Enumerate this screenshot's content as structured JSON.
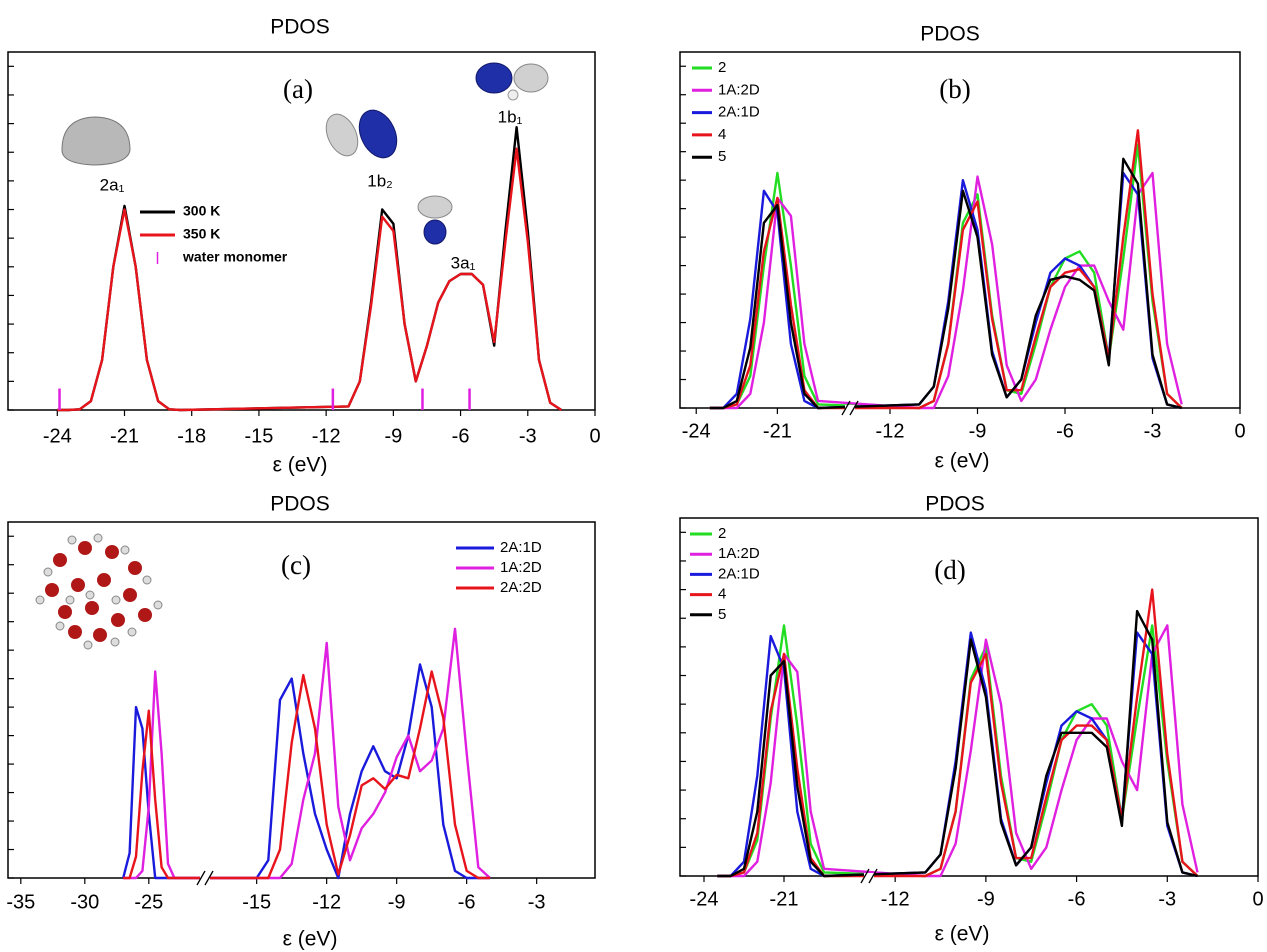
{
  "chart_data": [
    {
      "type": "line",
      "title": "PDOS",
      "panel_label": "(a)",
      "xlabel": "ε (eV)",
      "xlim": [
        -26.2,
        0
      ],
      "xticks": [
        -24,
        -21,
        -18,
        -15,
        -12,
        -9,
        -6,
        -3,
        0
      ],
      "ylim": [
        0,
        100
      ],
      "yticks": [
        0,
        8,
        16,
        24,
        32,
        40,
        48,
        56,
        64,
        72,
        80,
        88,
        96
      ],
      "ytick_labels": false,
      "x": [
        -24,
        -23.5,
        -23,
        -22.5,
        -22,
        -21.5,
        -21,
        -20.5,
        -20,
        -19.5,
        -19,
        -18.5,
        -11,
        -10.5,
        -10,
        -9.5,
        -9,
        -8.5,
        -8,
        -7.5,
        -7,
        -6.5,
        -6,
        -5.5,
        -5,
        -4.5,
        -4,
        -3.5,
        -3,
        -2.5,
        -2,
        -1.5
      ],
      "series": [
        {
          "name": "300 K",
          "color": "#000000",
          "values": [
            0,
            0,
            0.2,
            2.5,
            14,
            40,
            57,
            40,
            14,
            2.5,
            0.2,
            0,
            1,
            8,
            30,
            56,
            52,
            24,
            8,
            18,
            30,
            36,
            38,
            38,
            35,
            18,
            50,
            79,
            50,
            14,
            2,
            0
          ]
        },
        {
          "name": "350 K",
          "color": "#e8141c",
          "values": [
            0,
            0,
            0.2,
            2.5,
            14,
            40,
            56,
            40,
            14,
            2.5,
            0.2,
            0,
            1,
            8,
            29,
            54,
            50,
            24,
            8,
            18,
            30,
            36,
            38,
            38,
            35,
            19,
            47,
            73,
            47,
            14,
            2,
            0
          ]
        },
        {
          "name": "water monomer",
          "color": "#e020e0",
          "style": "stick",
          "x": [
            -23.9,
            -11.7,
            -7.7,
            -5.6
          ],
          "values": [
            6,
            6,
            6,
            6
          ]
        }
      ],
      "annotations": [
        "2a₁",
        "1b₂",
        "3a₁",
        "1b₁"
      ],
      "legend": "upper left"
    },
    {
      "type": "line",
      "title": "PDOS",
      "panel_label": "(b)",
      "xlabel": "ε (eV)",
      "xlim": [
        -24.6,
        0
      ],
      "x_break": [
        -18.5,
        -13.2
      ],
      "xticks": [
        -24,
        -21,
        -12,
        -9,
        -6,
        -3,
        0
      ],
      "ylim": [
        0,
        100
      ],
      "yticks": [
        0,
        8,
        16,
        24,
        32,
        40,
        48,
        56,
        64,
        72,
        80,
        88,
        96
      ],
      "ytick_labels": false,
      "x": [
        -23.5,
        -23,
        -22.5,
        -22,
        -21.5,
        -21,
        -20.5,
        -20,
        -19.5,
        -11,
        -10.5,
        -10,
        -9.5,
        -9,
        -8.5,
        -8,
        -7.5,
        -7,
        -6.5,
        -6,
        -5.5,
        -5,
        -4.5,
        -4,
        -3.5,
        -3,
        -2.5,
        -2
      ],
      "series": [
        {
          "name": "2",
          "color": "#22dd22",
          "values": [
            0,
            0,
            1,
            9,
            40,
            66,
            40,
            9,
            1,
            0,
            2,
            18,
            52,
            60,
            26,
            5,
            4,
            18,
            34,
            42,
            44,
            38,
            14,
            42,
            74,
            30,
            4,
            0
          ]
        },
        {
          "name": "1A:2D",
          "color": "#e020e0",
          "values": [
            0,
            0,
            0,
            4,
            24,
            59,
            54,
            18,
            2,
            0,
            0,
            9,
            33,
            65,
            46,
            12,
            2,
            8,
            22,
            34,
            40,
            40,
            30,
            22,
            60,
            66,
            18,
            1
          ]
        },
        {
          "name": "2A:1D",
          "color": "#1a1adc",
          "values": [
            0,
            0,
            4,
            25,
            61,
            55,
            18,
            2,
            0,
            1,
            6,
            30,
            64,
            50,
            16,
            3,
            8,
            24,
            38,
            42,
            40,
            34,
            14,
            66,
            60,
            14,
            1,
            0
          ]
        },
        {
          "name": "4",
          "color": "#e8141c",
          "values": [
            0,
            0,
            1,
            12,
            44,
            59,
            29,
            5,
            0,
            0,
            2,
            18,
            50,
            58,
            25,
            5,
            5,
            20,
            34,
            38,
            39,
            34,
            14,
            48,
            78,
            32,
            4,
            0
          ]
        },
        {
          "name": "5",
          "color": "#000000",
          "values": [
            0,
            0,
            2,
            17,
            52,
            57,
            24,
            4,
            0,
            1,
            6,
            28,
            61,
            48,
            15,
            3,
            8,
            26,
            36,
            37,
            36,
            33,
            12,
            70,
            63,
            15,
            1,
            0
          ]
        }
      ],
      "legend": "upper left"
    },
    {
      "type": "line",
      "title": "PDOS",
      "panel_label": "(c)",
      "xlabel": "ε (eV)",
      "xlim": [
        -36,
        -0.5
      ],
      "x_break": [
        -21,
        -17
      ],
      "xticks": [
        -35,
        -30,
        -25,
        -15,
        -12,
        -9,
        -6,
        -3
      ],
      "ylim": [
        0,
        100
      ],
      "yticks": [
        0,
        8,
        16,
        24,
        32,
        40,
        48,
        56,
        64,
        72,
        80,
        88,
        96
      ],
      "ytick_labels": false,
      "x": [
        -27,
        -26.5,
        -26,
        -25.5,
        -25,
        -24.5,
        -24,
        -23.5,
        -23,
        -15,
        -14.5,
        -14,
        -13.5,
        -13,
        -12.5,
        -12,
        -11.5,
        -11,
        -10.5,
        -10,
        -9.5,
        -9,
        -8.5,
        -8,
        -7.5,
        -7,
        -6.5,
        -6,
        -5.5,
        -5
      ],
      "series": [
        {
          "name": "2A:1D",
          "color": "#1a1adc",
          "values": [
            0,
            7,
            48,
            42,
            18,
            0,
            0,
            0,
            0,
            0,
            5,
            50,
            56,
            35,
            18,
            8,
            0,
            18,
            30,
            37,
            30,
            28,
            40,
            60,
            48,
            15,
            2,
            0,
            0,
            0
          ]
        },
        {
          "name": "1A:2D",
          "color": "#e020e0",
          "values": [
            0,
            0,
            0,
            2,
            20,
            58,
            35,
            4,
            0,
            0,
            0,
            0,
            4,
            22,
            35,
            66,
            20,
            5,
            14,
            18,
            24,
            34,
            40,
            30,
            33,
            42,
            70,
            35,
            3,
            0
          ]
        },
        {
          "name": "2A:2D",
          "color": "#e8141c",
          "values": [
            0,
            0,
            6,
            30,
            47,
            22,
            3,
            0,
            0,
            0,
            0,
            8,
            38,
            57,
            42,
            15,
            1,
            12,
            26,
            28,
            25,
            29,
            28,
            42,
            58,
            45,
            15,
            2,
            0,
            0
          ]
        }
      ],
      "legend": "upper right"
    },
    {
      "type": "line",
      "title": "PDOS",
      "panel_label": "(d)",
      "xlabel": "ε (eV)",
      "xlim": [
        -24.9,
        0
      ],
      "x_break": [
        -18,
        -12.7
      ],
      "xticks": [
        -24,
        -21,
        -12,
        -9,
        -6,
        -3,
        0
      ],
      "ylim": [
        0,
        100
      ],
      "yticks": [
        0,
        8,
        16,
        24,
        32,
        40,
        48,
        56,
        64,
        72,
        80,
        88,
        96
      ],
      "ytick_labels": false,
      "x": [
        -23.5,
        -23,
        -22.5,
        -22,
        -21.5,
        -21,
        -20.5,
        -20,
        -19.5,
        -11,
        -10.5,
        -10,
        -9.5,
        -9,
        -8.5,
        -8,
        -7.5,
        -7,
        -6.5,
        -6,
        -5.5,
        -5,
        -4.5,
        -4,
        -3.5,
        -3,
        -2.5,
        -2
      ],
      "series": [
        {
          "name": "2",
          "color": "#22dd22",
          "values": [
            0,
            0,
            1,
            10,
            44,
            70,
            42,
            9,
            1,
            0,
            2,
            18,
            55,
            64,
            28,
            5,
            4,
            20,
            38,
            46,
            48,
            42,
            16,
            44,
            70,
            32,
            4,
            0
          ]
        },
        {
          "name": "1A:2D",
          "color": "#e020e0",
          "values": [
            0,
            0,
            0,
            4,
            26,
            62,
            57,
            18,
            2,
            0,
            0,
            9,
            35,
            66,
            48,
            12,
            2,
            8,
            24,
            38,
            44,
            44,
            32,
            24,
            62,
            70,
            20,
            1
          ]
        },
        {
          "name": "2A:1D",
          "color": "#1a1adc",
          "values": [
            0,
            0,
            4,
            28,
            67,
            58,
            18,
            2,
            0,
            1,
            6,
            32,
            68,
            52,
            16,
            3,
            8,
            26,
            42,
            46,
            44,
            38,
            16,
            68,
            62,
            14,
            1,
            0
          ]
        },
        {
          "name": "4",
          "color": "#e8141c",
          "values": [
            0,
            0,
            1,
            12,
            46,
            62,
            30,
            5,
            0,
            0,
            2,
            18,
            54,
            62,
            26,
            5,
            5,
            22,
            38,
            42,
            42,
            38,
            16,
            50,
            80,
            34,
            4,
            0
          ]
        },
        {
          "name": "5",
          "color": "#000000",
          "values": [
            0,
            0,
            2,
            18,
            56,
            60,
            25,
            4,
            0,
            1,
            6,
            30,
            66,
            50,
            15,
            3,
            8,
            28,
            40,
            40,
            40,
            36,
            14,
            74,
            66,
            15,
            1,
            0
          ]
        }
      ],
      "legend": "upper left"
    }
  ]
}
